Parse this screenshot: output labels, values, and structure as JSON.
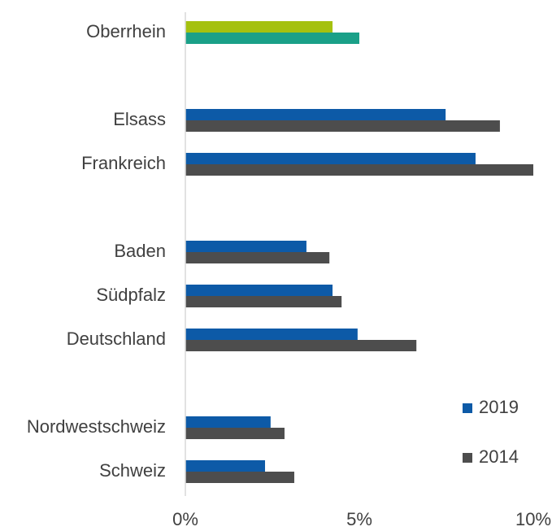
{
  "chart_data": {
    "type": "hbar",
    "categories": [
      "Oberrhein",
      null,
      "Elsass",
      "Frankreich",
      null,
      "Baden",
      "Südpfalz",
      "Deutschland",
      null,
      "Nordwestschweiz",
      "Schweiz"
    ],
    "series": [
      {
        "name": "2019",
        "color": "#0d5aa7",
        "colors": [
          "#a5c10f",
          null,
          "#0d5aa7",
          "#0d5aa7",
          null,
          "#0d5aa7",
          "#0d5aa7",
          "#0d5aa7",
          null,
          "#0d5aa7",
          "#0d5aa7"
        ],
        "values": [
          4.23,
          null,
          7.48,
          8.34,
          null,
          3.48,
          4.23,
          4.95,
          null,
          2.45,
          2.29
        ]
      },
      {
        "name": "2014",
        "color": "#4d4d4d",
        "colors": [
          "#1aa088",
          null,
          "#4d4d4d",
          "#4d4d4d",
          null,
          "#4d4d4d",
          "#4d4d4d",
          "#4d4d4d",
          null,
          "#4d4d4d",
          "#4d4d4d"
        ],
        "values": [
          5.0,
          null,
          9.04,
          10.0,
          null,
          4.14,
          4.49,
          6.64,
          null,
          2.85,
          3.13
        ]
      }
    ],
    "xlim": [
      0,
      10
    ],
    "xticks": [
      {
        "value": 0,
        "label": "0%"
      },
      {
        "value": 5,
        "label": "5%"
      },
      {
        "value": 10,
        "label": "10%"
      }
    ],
    "grid": false,
    "legend": "lower right"
  }
}
